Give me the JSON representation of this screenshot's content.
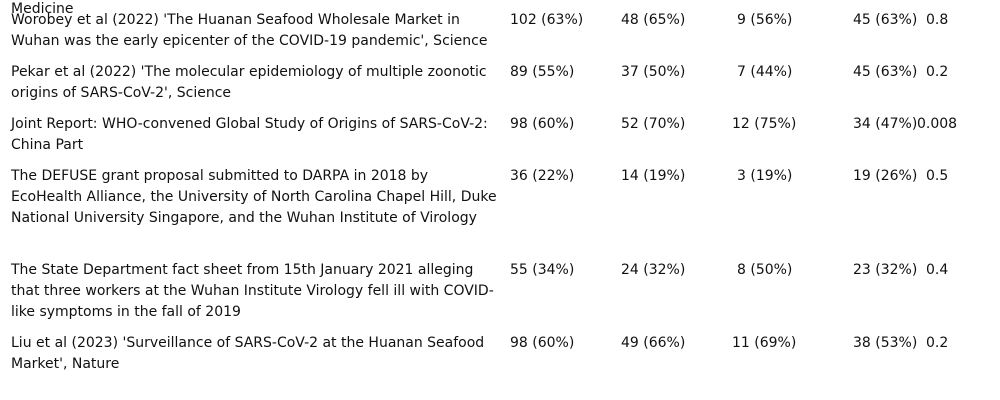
{
  "table": {
    "rows": [
      {
        "source": "Medicine",
        "partial_top": true,
        "v1": "",
        "v2": "",
        "v3": "",
        "v4": "",
        "p": ""
      },
      {
        "source": "Worobey et al (2022) 'The Huanan Seafood Wholesale Market in Wuhan was the early epicenter of the COVID-19 pandemic', Science",
        "v1": "102 (63%)",
        "v2": "48 (65%)",
        "v3": "9 (56%)",
        "v4": "45 (63%)",
        "p": "0.8"
      },
      {
        "source": "Pekar et al (2022) 'The molecular epidemiology of multiple zoonotic origins of SARS-CoV-2', Science",
        "v1": "89 (55%)",
        "v2": "37 (50%)",
        "v3": "7 (44%)",
        "v4": "45 (63%)",
        "p": "0.2"
      },
      {
        "source": "Joint Report: WHO-convened Global Study of Origins of SARS-CoV-2: China Part",
        "v1": "98 (60%)",
        "v2": "52 (70%)",
        "v3": "12 (75%)",
        "v4": "34 (47%)",
        "p": "0.008"
      },
      {
        "source": "The DEFUSE grant proposal submitted to DARPA in 2018 by EcoHealth Alliance, the University of North Carolina Chapel Hill, Duke National University Singapore, and the Wuhan Institute of Virology",
        "v1": "36 (22%)",
        "v2": "14 (19%)",
        "v3": "3 (19%)",
        "v4": "19 (26%)",
        "p": "0.5"
      },
      {
        "source": "The State Department fact sheet from 15th January 2021 alleging that three workers at the Wuhan Institute Virology fell ill with COVID-like symptoms in the fall of 2019",
        "v1": "55 (34%)",
        "v2": "24 (32%)",
        "v3": "8 (50%)",
        "v4": "23 (32%)",
        "p": "0.4"
      },
      {
        "source": "Liu et al (2023) 'Surveillance of SARS-CoV-2 at the Huanan Seafood Market', Nature",
        "v1": "98 (60%)",
        "v2": "49 (66%)",
        "v3": "11 (69%)",
        "v4": "38 (53%)",
        "p": "0.2"
      }
    ]
  }
}
